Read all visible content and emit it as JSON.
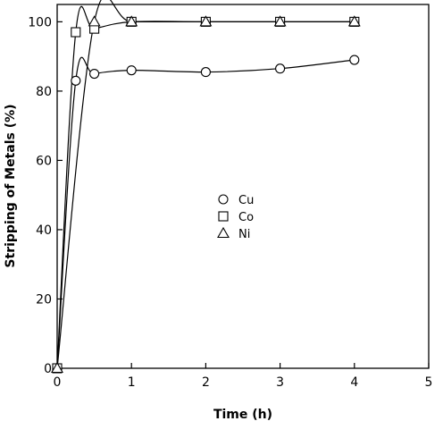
{
  "chart_data": {
    "type": "line",
    "title": "",
    "xlabel": "Time (h)",
    "ylabel": "Stripping of Metals (%)",
    "xlim": [
      0,
      5
    ],
    "ylim": [
      0,
      105
    ],
    "xticks": [
      0,
      1,
      2,
      3,
      4,
      5
    ],
    "yticks": [
      0,
      20,
      40,
      60,
      80,
      100
    ],
    "grid": false,
    "legend_position": "center",
    "series": [
      {
        "name": "Cu",
        "marker": "circle",
        "x": [
          0,
          0.25,
          0.5,
          1,
          2,
          3,
          4
        ],
        "y": [
          0,
          83,
          85,
          86,
          85.5,
          86.5,
          89
        ]
      },
      {
        "name": "Co",
        "marker": "square",
        "x": [
          0,
          0.25,
          0.5,
          1,
          2,
          3,
          4
        ],
        "y": [
          0,
          97,
          98,
          100,
          100,
          100,
          100
        ]
      },
      {
        "name": "Ni",
        "marker": "triangle",
        "x": [
          0,
          0.5,
          1,
          2,
          3,
          4
        ],
        "y": [
          0,
          100,
          100,
          100,
          100,
          100
        ]
      }
    ]
  }
}
